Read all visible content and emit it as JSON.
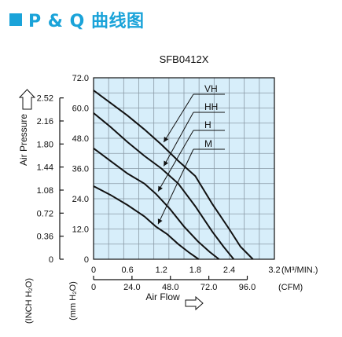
{
  "header": {
    "title": "P & Q 曲线图",
    "accent_color": "#1aa3d9"
  },
  "chart_data": {
    "type": "line",
    "title": "SFB0412X",
    "plot_bg_color": "#d7eefa",
    "grid": true,
    "x_primary": {
      "unit": "(M³/MIN.)",
      "range": [
        0,
        3.2
      ],
      "ticks": [
        "0",
        "0.6",
        "1.2",
        "1.8",
        "2.4",
        "3.2"
      ],
      "tick_values": [
        0,
        0.6,
        1.2,
        1.8,
        2.4,
        3.2
      ]
    },
    "x_secondary": {
      "unit": "(CFM)",
      "label": "Air Flow",
      "ticks": [
        "0",
        "24.0",
        "48.0",
        "72.0",
        "96.0"
      ],
      "tick_values_m3min": [
        0,
        0.68,
        1.36,
        2.04,
        2.72
      ]
    },
    "y_primary": {
      "unit": "(mm H₂O)",
      "range": [
        0,
        72
      ],
      "ticks": [
        "0",
        "12.0",
        "24.0",
        "36.0",
        "48.0",
        "60.0",
        "72.0"
      ],
      "tick_values": [
        0,
        12,
        24,
        36,
        48,
        60,
        72
      ]
    },
    "y_secondary": {
      "unit": "(INCH H₂O)",
      "label": "Air Pressure",
      "ticks": [
        "0",
        "0.36",
        "0.72",
        "1.08",
        "1.44",
        "1.80",
        "2.16",
        "2.52"
      ],
      "tick_values_mm": [
        0,
        9.14,
        18.29,
        27.43,
        36.58,
        45.72,
        54.86,
        64.01
      ]
    },
    "series": [
      {
        "name": "VH",
        "x": [
          0,
          0.3,
          0.6,
          0.9,
          1.2,
          1.5,
          1.8,
          2.1,
          2.4,
          2.6,
          2.82
        ],
        "y": [
          67,
          62,
          57,
          51.5,
          45.5,
          39,
          33,
          22,
          12,
          5,
          0
        ]
      },
      {
        "name": "HH",
        "x": [
          0,
          0.3,
          0.6,
          0.9,
          1.2,
          1.5,
          1.8,
          2.1,
          2.3,
          2.48
        ],
        "y": [
          58,
          52.5,
          46.5,
          41,
          36,
          30,
          21,
          11,
          5,
          0
        ]
      },
      {
        "name": "H",
        "x": [
          0,
          0.3,
          0.6,
          0.9,
          1.1,
          1.35,
          1.6,
          1.85,
          2.05,
          2.22
        ],
        "y": [
          44,
          39,
          34,
          30,
          26,
          20,
          13,
          7,
          3,
          0
        ]
      },
      {
        "name": "M",
        "x": [
          0,
          0.3,
          0.6,
          0.9,
          1.1,
          1.3,
          1.5,
          1.7,
          1.86
        ],
        "y": [
          29,
          25.5,
          21.5,
          17,
          13,
          10,
          6,
          2.5,
          0
        ]
      }
    ]
  }
}
